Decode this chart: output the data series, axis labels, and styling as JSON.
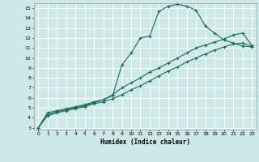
{
  "xlabel": "Humidex (Indice chaleur)",
  "bg_color": "#cce8e8",
  "grid_color": "#ffffff",
  "line_color": "#1a6b5a",
  "xlim": [
    -0.5,
    23.5
  ],
  "ylim": [
    2.8,
    15.5
  ],
  "xticks": [
    0,
    1,
    2,
    3,
    4,
    5,
    6,
    7,
    8,
    9,
    10,
    11,
    12,
    13,
    14,
    15,
    16,
    17,
    18,
    19,
    20,
    21,
    22,
    23
  ],
  "yticks": [
    3,
    4,
    5,
    6,
    7,
    8,
    9,
    10,
    11,
    12,
    13,
    14,
    15
  ],
  "line1_x": [
    0,
    1,
    2,
    3,
    4,
    5,
    6,
    7,
    8,
    9,
    10,
    11,
    12,
    13,
    14,
    15,
    16,
    17,
    18,
    19,
    20,
    21,
    22,
    23
  ],
  "line1_y": [
    3.0,
    4.5,
    4.7,
    4.9,
    5.1,
    5.3,
    5.6,
    5.8,
    6.2,
    9.3,
    10.5,
    12.0,
    12.2,
    14.7,
    15.2,
    15.4,
    15.2,
    14.8,
    13.2,
    12.5,
    11.8,
    11.5,
    11.2,
    11.1
  ],
  "line2_x": [
    0,
    1,
    2,
    3,
    4,
    5,
    6,
    7,
    8,
    9,
    10,
    11,
    12,
    13,
    14,
    15,
    16,
    17,
    18,
    19,
    20,
    21,
    22,
    23
  ],
  "line2_y": [
    3.0,
    4.3,
    4.6,
    4.8,
    5.0,
    5.2,
    5.5,
    5.8,
    6.3,
    7.0,
    7.5,
    8.0,
    8.6,
    9.0,
    9.5,
    10.0,
    10.5,
    11.0,
    11.3,
    11.6,
    11.9,
    12.3,
    12.5,
    11.3
  ],
  "line3_x": [
    0,
    1,
    2,
    3,
    4,
    5,
    6,
    7,
    8,
    9,
    10,
    11,
    12,
    13,
    14,
    15,
    16,
    17,
    18,
    19,
    20,
    21,
    22,
    23
  ],
  "line3_y": [
    3.0,
    4.2,
    4.5,
    4.7,
    4.9,
    5.1,
    5.4,
    5.6,
    5.9,
    6.3,
    6.8,
    7.2,
    7.7,
    8.2,
    8.7,
    9.1,
    9.6,
    10.0,
    10.4,
    10.8,
    11.1,
    11.4,
    11.5,
    11.2
  ]
}
